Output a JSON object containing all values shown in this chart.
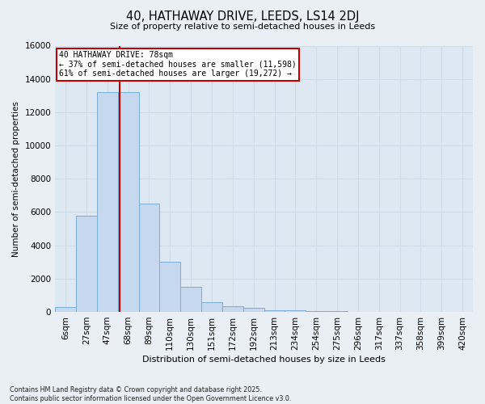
{
  "title_line1": "40, HATHAWAY DRIVE, LEEDS, LS14 2DJ",
  "title_line2": "Size of property relative to semi-detached houses in Leeds",
  "xlabel": "Distribution of semi-detached houses by size in Leeds",
  "ylabel": "Number of semi-detached properties",
  "bin_labels": [
    "6sqm",
    "27sqm",
    "47sqm",
    "68sqm",
    "89sqm",
    "110sqm",
    "130sqm",
    "151sqm",
    "172sqm",
    "192sqm",
    "213sqm",
    "234sqm",
    "254sqm",
    "275sqm",
    "296sqm",
    "317sqm",
    "337sqm",
    "358sqm",
    "399sqm",
    "420sqm"
  ],
  "bar_values": [
    300,
    5800,
    13200,
    13200,
    6500,
    3000,
    1500,
    600,
    320,
    250,
    120,
    80,
    50,
    30,
    10,
    0,
    0,
    0,
    0,
    0
  ],
  "bar_color": "#c5d8ed",
  "bar_edge_color": "#7aadd4",
  "grid_color": "#d0dde8",
  "vline_color": "#c00000",
  "annotation_title": "40 HATHAWAY DRIVE: 78sqm",
  "annotation_line1": "← 37% of semi-detached houses are smaller (11,598)",
  "annotation_line2": "61% of semi-detached houses are larger (19,272) →",
  "annotation_box_color": "#ffffff",
  "annotation_box_edge": "#c00000",
  "footer_line1": "Contains HM Land Registry data © Crown copyright and database right 2025.",
  "footer_line2": "Contains public sector information licensed under the Open Government Licence v3.0.",
  "ylim": [
    0,
    16000
  ],
  "yticks": [
    0,
    2000,
    4000,
    6000,
    8000,
    10000,
    12000,
    14000,
    16000
  ],
  "background_color": "#eaeff5",
  "plot_background": "#dde8f2"
}
